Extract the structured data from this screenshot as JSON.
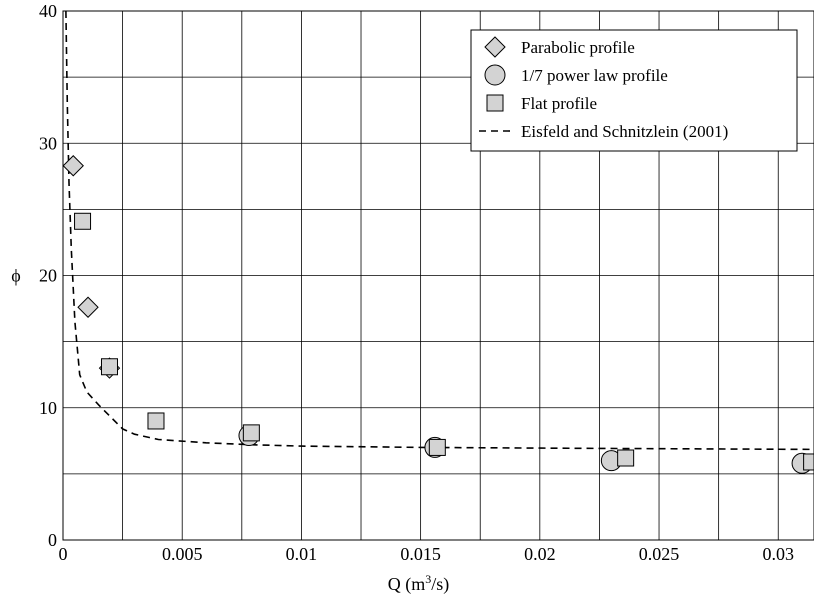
{
  "chart_data": {
    "type": "scatter",
    "title": "",
    "xlabel": "Q (m",
    "xlabel_sup": "3",
    "xlabel_tail": "/s)",
    "ylabel": "ϕ",
    "xlim": [
      0,
      0.0315
    ],
    "ylim": [
      0,
      40
    ],
    "x_ticks": [
      0,
      0.005,
      0.01,
      0.015,
      0.02,
      0.025,
      0.03
    ],
    "x_tick_labels": [
      "0",
      "0.005",
      "0.01",
      "0.015",
      "0.02",
      "0.025",
      "0.03"
    ],
    "y_ticks": [
      0,
      10,
      20,
      30,
      40
    ],
    "y_tick_labels": [
      "0",
      "10",
      "20",
      "30",
      "40"
    ],
    "grid": true,
    "grid_x_step": 0.0025,
    "grid_y_step": 5,
    "legend_position": "top-right",
    "series": [
      {
        "name": "Parabolic profile",
        "marker": "diamond",
        "points": [
          {
            "x": 0.00043,
            "y": 28.3
          },
          {
            "x": 0.00105,
            "y": 17.6
          },
          {
            "x": 0.00195,
            "y": 13.0
          }
        ]
      },
      {
        "name": "1/7 power law profile",
        "marker": "circle",
        "points": [
          {
            "x": 0.0078,
            "y": 7.9
          },
          {
            "x": 0.0156,
            "y": 7.0
          },
          {
            "x": 0.023,
            "y": 6.0
          },
          {
            "x": 0.031,
            "y": 5.8
          }
        ]
      },
      {
        "name": "Flat profile",
        "marker": "square",
        "points": [
          {
            "x": 0.00082,
            "y": 24.1
          },
          {
            "x": 0.00195,
            "y": 13.1
          },
          {
            "x": 0.0039,
            "y": 9.0
          },
          {
            "x": 0.0079,
            "y": 8.1
          },
          {
            "x": 0.0157,
            "y": 7.0
          },
          {
            "x": 0.0236,
            "y": 6.2
          },
          {
            "x": 0.0314,
            "y": 5.9
          }
        ]
      },
      {
        "name": "Eisfeld and Schnitzlein (2001)",
        "marker": "dashed-line",
        "points": [
          {
            "x": 0.00012,
            "y": 40
          },
          {
            "x": 0.00018,
            "y": 33
          },
          {
            "x": 0.00025,
            "y": 27
          },
          {
            "x": 0.00035,
            "y": 22
          },
          {
            "x": 0.0005,
            "y": 16.5
          },
          {
            "x": 0.0007,
            "y": 12.5
          },
          {
            "x": 0.001,
            "y": 11.2
          },
          {
            "x": 0.0015,
            "y": 10.2
          },
          {
            "x": 0.002,
            "y": 9.3
          },
          {
            "x": 0.0025,
            "y": 8.4
          },
          {
            "x": 0.003,
            "y": 8.0
          },
          {
            "x": 0.004,
            "y": 7.6
          },
          {
            "x": 0.006,
            "y": 7.35
          },
          {
            "x": 0.008,
            "y": 7.2
          },
          {
            "x": 0.01,
            "y": 7.1
          },
          {
            "x": 0.015,
            "y": 7.0
          },
          {
            "x": 0.02,
            "y": 6.95
          },
          {
            "x": 0.025,
            "y": 6.9
          },
          {
            "x": 0.0315,
            "y": 6.85
          }
        ]
      }
    ]
  }
}
